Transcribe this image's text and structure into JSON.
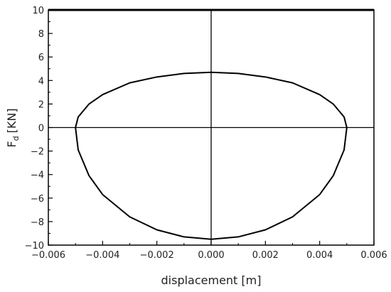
{
  "chart_data": {
    "type": "line",
    "x_label": "displacement [m]",
    "y_label": "F",
    "y_label_subscript": "d",
    "y_label_unit": "[KN]",
    "xlim": [
      -0.006,
      0.006
    ],
    "xticks": [
      {
        "value": -0.006,
        "label": "−0.006"
      },
      {
        "value": -0.004,
        "label": "−0.004"
      },
      {
        "value": -0.002,
        "label": "−0.002"
      },
      {
        "value": 0,
        "label": "0.000"
      },
      {
        "value": 0.002,
        "label": "0.002"
      },
      {
        "value": 0.004,
        "label": "0.004"
      },
      {
        "value": 0.006,
        "label": "0.006"
      }
    ],
    "ylim": [
      -10,
      10
    ],
    "yticks": [
      {
        "value": -10,
        "label": "−10"
      },
      {
        "value": -8,
        "label": "−8"
      },
      {
        "value": -6,
        "label": "−6"
      },
      {
        "value": -4,
        "label": "−4"
      },
      {
        "value": -2,
        "label": "−2"
      },
      0,
      2,
      4,
      6,
      8,
      10
    ],
    "grid": false,
    "series": [
      {
        "color": "#000000",
        "x": [
          -0.005,
          -0.0049,
          -0.0045,
          -0.004,
          -0.003,
          -0.002,
          -0.001,
          0,
          0.001,
          0.002,
          0.003,
          0.004,
          0.0045,
          0.0049,
          0.005,
          0.0049,
          0.0045,
          0.004,
          0.003,
          0.002,
          0.001,
          0,
          -0.001,
          -0.002,
          -0.003,
          -0.004,
          -0.0045,
          -0.0049,
          -0.005
        ],
        "values": [
          0,
          0.9,
          2.0,
          2.8,
          3.8,
          4.3,
          4.6,
          4.7,
          4.6,
          4.3,
          3.8,
          2.8,
          2.0,
          0.9,
          0,
          -1.9,
          -4.1,
          -5.7,
          -7.6,
          -8.7,
          -9.3,
          -9.5,
          -9.3,
          -8.7,
          -7.6,
          -5.7,
          -4.1,
          -1.9,
          0
        ]
      }
    ]
  }
}
